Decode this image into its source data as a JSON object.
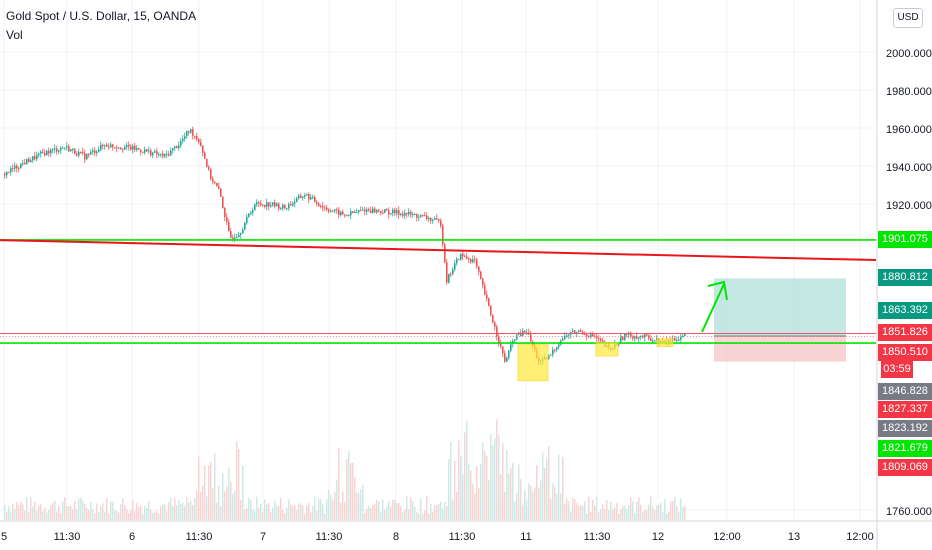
{
  "header": {
    "title": "Gold Spot / U.S. Dollar, 15, OANDA",
    "volume_label": "Vol",
    "currency": "USD"
  },
  "chart_data": {
    "type": "candlestick",
    "symbol": "Gold Spot / U.S. Dollar",
    "interval": "15",
    "source": "OANDA",
    "y_ticks": [
      "2000.000",
      "1980.000",
      "1960.000",
      "1940.000",
      "1920.000",
      "1760.000"
    ],
    "x_ticks": [
      "5",
      "11:30",
      "6",
      "11:30",
      "7",
      "11:30",
      "8",
      "11:30",
      "11",
      "11:30",
      "12",
      "12:00",
      "13",
      "12:00"
    ],
    "y_range_visible": [
      1758,
      2020
    ],
    "price_path": [
      {
        "i": 0,
        "close": 1936
      },
      {
        "i": 20,
        "close": 1942
      },
      {
        "i": 40,
        "close": 1947
      },
      {
        "i": 60,
        "close": 1950
      },
      {
        "i": 80,
        "close": 1945
      },
      {
        "i": 100,
        "close": 1951
      },
      {
        "i": 120,
        "close": 1950
      },
      {
        "i": 140,
        "close": 1948
      },
      {
        "i": 160,
        "close": 1945
      },
      {
        "i": 175,
        "close": 1952
      },
      {
        "i": 185,
        "close": 1959
      },
      {
        "i": 195,
        "close": 1953
      },
      {
        "i": 205,
        "close": 1935
      },
      {
        "i": 215,
        "close": 1926
      },
      {
        "i": 225,
        "close": 1902
      },
      {
        "i": 235,
        "close": 1905
      },
      {
        "i": 250,
        "close": 1920
      },
      {
        "i": 265,
        "close": 1920
      },
      {
        "i": 280,
        "close": 1918
      },
      {
        "i": 300,
        "close": 1925
      },
      {
        "i": 320,
        "close": 1918
      },
      {
        "i": 340,
        "close": 1914
      },
      {
        "i": 360,
        "close": 1917
      },
      {
        "i": 380,
        "close": 1916
      },
      {
        "i": 400,
        "close": 1915
      },
      {
        "i": 420,
        "close": 1913
      },
      {
        "i": 436,
        "close": 1910
      },
      {
        "i": 442,
        "close": 1880
      },
      {
        "i": 455,
        "close": 1893
      },
      {
        "i": 470,
        "close": 1890
      },
      {
        "i": 478,
        "close": 1876
      },
      {
        "i": 490,
        "close": 1855
      },
      {
        "i": 500,
        "close": 1837
      },
      {
        "i": 510,
        "close": 1850
      },
      {
        "i": 522,
        "close": 1853
      },
      {
        "i": 535,
        "close": 1836
      },
      {
        "i": 545,
        "close": 1840
      },
      {
        "i": 555,
        "close": 1848
      },
      {
        "i": 565,
        "close": 1852
      },
      {
        "i": 575,
        "close": 1853
      },
      {
        "i": 590,
        "close": 1850
      },
      {
        "i": 605,
        "close": 1843
      },
      {
        "i": 620,
        "close": 1851
      },
      {
        "i": 640,
        "close": 1850
      },
      {
        "i": 660,
        "close": 1847
      },
      {
        "i": 680,
        "close": 1851
      }
    ],
    "annotations": {
      "support_lines": [
        1901.075,
        1846.828
      ],
      "resistance_line": 1851.826,
      "descending_trendline": {
        "from": 1901.0,
        "to": 1890.5
      },
      "long_position": {
        "entry": 1850.51,
        "target": 1880.812,
        "stop": 1837.0
      },
      "highlight_boxes": [
        {
          "from": 1827,
          "to": 1846
        },
        {
          "from": 1840,
          "to": 1847
        },
        {
          "from": 1845,
          "to": 1849
        }
      ]
    },
    "price_labels": [
      {
        "text": "1901.075",
        "color": "#00e600",
        "value": 1901.075
      },
      {
        "text": "1880.812",
        "color": "#089981",
        "value": 1880.812
      },
      {
        "text": "1863.392",
        "color": "#089981",
        "value": 1863.392
      },
      {
        "text": "1851.826",
        "color": "#f23645",
        "value": 1851.826
      },
      {
        "text": "1850.510",
        "color": "#f23645",
        "value": 1850.51
      },
      {
        "text": "03:59",
        "color": "#f23645",
        "value": null
      },
      {
        "text": "1846.828",
        "color": "#787b86",
        "value": 1846.828
      },
      {
        "text": "1827.337",
        "color": "#f23645",
        "value": 1827.337
      },
      {
        "text": "1823.192",
        "color": "#787b86",
        "value": 1823.192
      },
      {
        "text": "1821.679",
        "color": "#00e600",
        "value": 1821.679
      },
      {
        "text": "1809.069",
        "color": "#f23645",
        "value": 1809.069
      }
    ],
    "colors": {
      "up": "#26a69a",
      "down": "#ef5350",
      "support": "#00e600",
      "trend": "#e8161b"
    }
  }
}
